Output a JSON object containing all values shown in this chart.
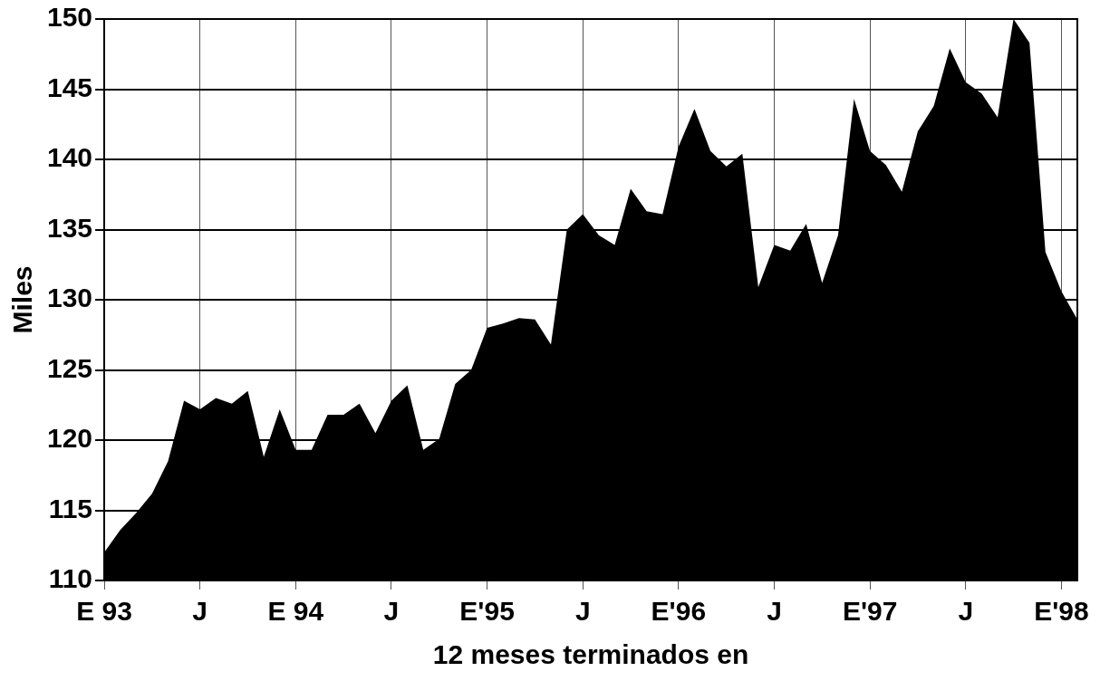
{
  "chart_data": {
    "type": "area",
    "xlabel": "12 meses terminados en",
    "ylabel": "Miles",
    "categories": [
      "E 93",
      null,
      null,
      null,
      null,
      null,
      "J",
      null,
      null,
      null,
      null,
      null,
      "E 94",
      null,
      null,
      null,
      null,
      null,
      "J",
      null,
      null,
      null,
      null,
      null,
      "E'95",
      null,
      null,
      null,
      null,
      null,
      "J",
      null,
      null,
      null,
      null,
      null,
      "E'96",
      null,
      null,
      null,
      null,
      null,
      "J",
      null,
      null,
      null,
      null,
      null,
      "E'97",
      null,
      null,
      null,
      null,
      null,
      "J",
      null,
      null,
      null,
      null,
      null,
      "E'98",
      null
    ],
    "series": [
      {
        "color": "#000000",
        "values": [
          112.0,
          113.6,
          114.8,
          116.2,
          118.5,
          122.8,
          122.2,
          123.0,
          122.6,
          123.5,
          118.8,
          122.2,
          119.3,
          119.3,
          121.8,
          121.8,
          122.6,
          120.5,
          122.8,
          123.9,
          119.3,
          120.1,
          124.0,
          125.0,
          128.0,
          128.3,
          128.7,
          128.6,
          126.8,
          135.0,
          136.1,
          134.6,
          133.9,
          137.9,
          136.3,
          136.1,
          140.9,
          143.6,
          140.6,
          139.5,
          140.4,
          130.9,
          133.9,
          133.5,
          135.4,
          131.2,
          134.6,
          144.3,
          140.6,
          139.6,
          137.7,
          142.0,
          143.8,
          147.9,
          145.5,
          144.7,
          143.0,
          150.0,
          148.3,
          133.4,
          130.6,
          128.6
        ]
      }
    ],
    "ylim": [
      110,
      150
    ],
    "yticks": [
      110,
      115,
      120,
      125,
      130,
      135,
      140,
      145,
      150
    ],
    "grid": true,
    "legend": false
  }
}
